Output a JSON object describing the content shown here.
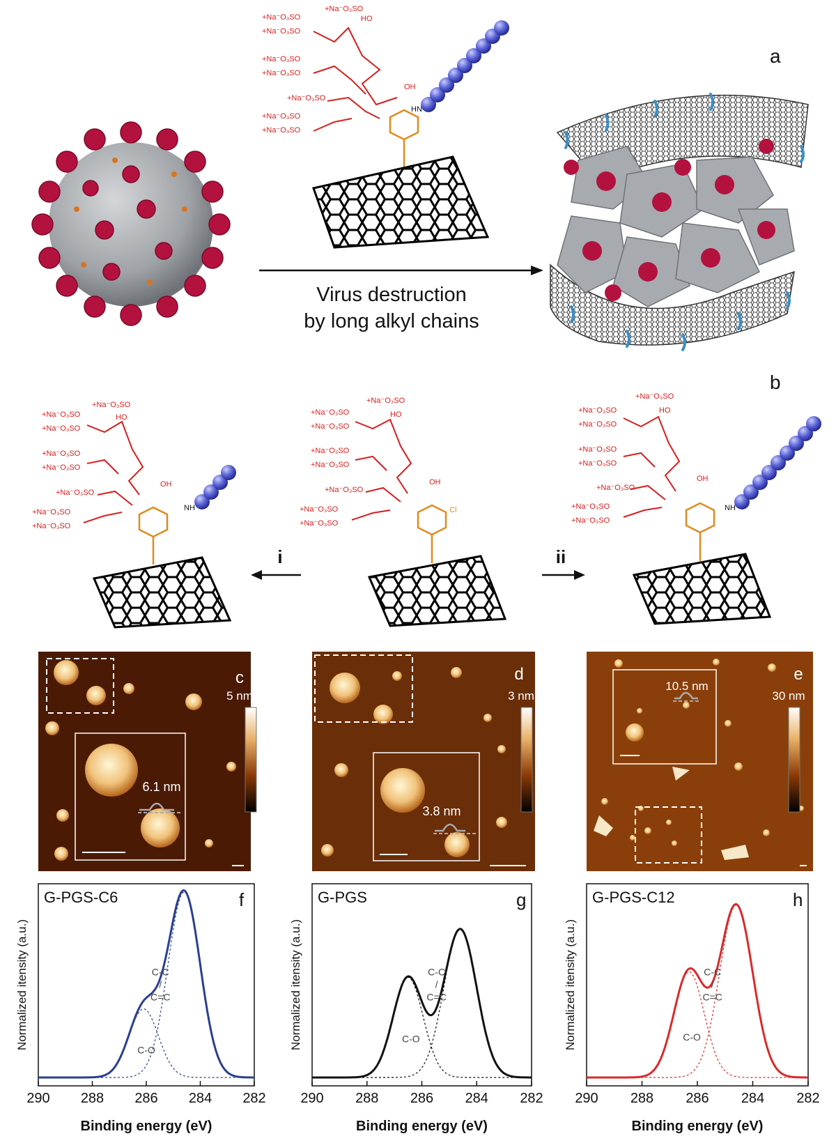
{
  "panel_labels": {
    "a": "a",
    "b": "b",
    "c": "c",
    "d": "d",
    "e": "e",
    "f": "f",
    "g": "g",
    "h": "h"
  },
  "arrow_caption": {
    "line1": "Virus destruction",
    "line2": "by long alkyl chains"
  },
  "reaction_labels": {
    "i": "i",
    "ii": "ii"
  },
  "chem": {
    "sulfate_lines": [
      "+Na⁻O₃SO",
      "+Na⁻O₃SO",
      "+Na⁻O₃SO",
      "+Na⁻O₃SO",
      "+Na⁻O₃SO",
      "+Na⁻O₃SO",
      "+Na⁻O₃SO",
      "+Na⁻O₃SO"
    ],
    "ho": "HO",
    "oh": "OH",
    "hn": "HN",
    "nh": "NH",
    "cl": "Cl",
    "n": "N"
  },
  "afm": {
    "c": {
      "scale_max": "5 nm",
      "height": "6.1 nm"
    },
    "d": {
      "scale_max": "3 nm",
      "height": "3.8 nm"
    },
    "e": {
      "scale_max": "30 nm",
      "height": "10.5 nm"
    }
  },
  "chart_data": [
    {
      "type": "line",
      "panel": "f",
      "title": "G-PGS-C6",
      "xlabel": "Binding energy (eV)",
      "ylabel": "Normalized itensity (a.u.)",
      "xlim": [
        290,
        282
      ],
      "x_ticks": [
        "290",
        "288",
        "286",
        "284",
        "282"
      ],
      "peaks": [
        {
          "label": "C-O",
          "center": 286.1,
          "height": 0.37
        },
        {
          "label": "C-C / C=C",
          "center": 284.6,
          "height": 1.0
        }
      ],
      "color": "#2b3f8f"
    },
    {
      "type": "line",
      "panel": "g",
      "title": "G-PGS",
      "xlabel": "Binding energy (eV)",
      "ylabel": "Normalized itensity (a.u.)",
      "xlim": [
        290,
        282
      ],
      "x_ticks": [
        "290",
        "288",
        "286",
        "284",
        "282"
      ],
      "peaks": [
        {
          "label": "C-O",
          "center": 286.5,
          "height": 0.54
        },
        {
          "label": "C-C / C=C",
          "center": 284.6,
          "height": 0.8
        }
      ],
      "color": "#111111"
    },
    {
      "type": "line",
      "panel": "h",
      "title": "G-PGS-C12",
      "xlabel": "Binding energy (eV)",
      "ylabel": "Normalized itensity (a.u.)",
      "xlim": [
        290,
        282
      ],
      "x_ticks": [
        "290",
        "288",
        "286",
        "284",
        "282"
      ],
      "peaks": [
        {
          "label": "C-O",
          "center": 286.3,
          "height": 0.57
        },
        {
          "label": "C-C / C=C",
          "center": 284.6,
          "height": 0.93
        }
      ],
      "color": "#d92a2a"
    }
  ]
}
